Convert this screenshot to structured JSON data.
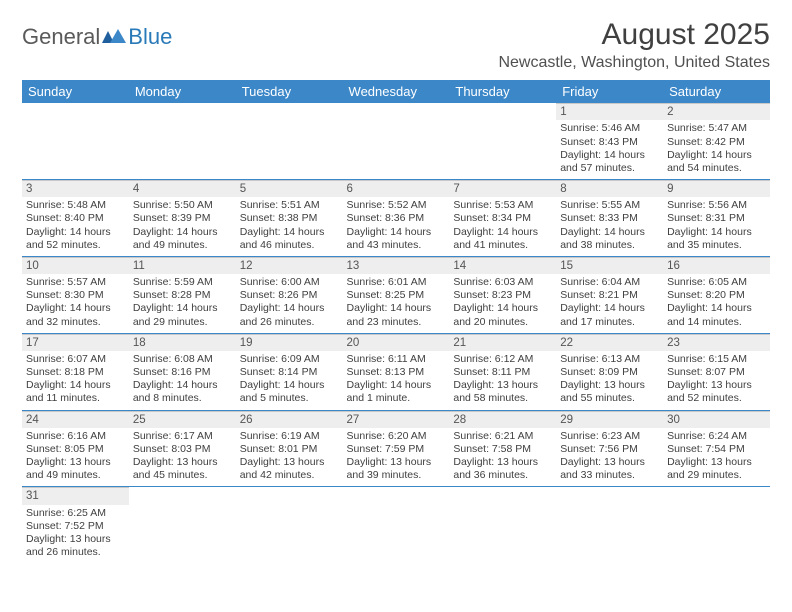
{
  "logo": {
    "text1": "General",
    "text2": "Blue"
  },
  "title": "August 2025",
  "location": "Newcastle, Washington, United States",
  "colors": {
    "header_bg": "#3b87c8",
    "header_text": "#ffffff",
    "daynum_bg": "#eeeeee",
    "row_divider": "#3b87c8",
    "body_text": "#404040"
  },
  "day_headers": [
    "Sunday",
    "Monday",
    "Tuesday",
    "Wednesday",
    "Thursday",
    "Friday",
    "Saturday"
  ],
  "weeks": [
    [
      null,
      null,
      null,
      null,
      null,
      {
        "n": "1",
        "sr": "Sunrise: 5:46 AM",
        "ss": "Sunset: 8:43 PM",
        "d1": "Daylight: 14 hours",
        "d2": "and 57 minutes."
      },
      {
        "n": "2",
        "sr": "Sunrise: 5:47 AM",
        "ss": "Sunset: 8:42 PM",
        "d1": "Daylight: 14 hours",
        "d2": "and 54 minutes."
      }
    ],
    [
      {
        "n": "3",
        "sr": "Sunrise: 5:48 AM",
        "ss": "Sunset: 8:40 PM",
        "d1": "Daylight: 14 hours",
        "d2": "and 52 minutes."
      },
      {
        "n": "4",
        "sr": "Sunrise: 5:50 AM",
        "ss": "Sunset: 8:39 PM",
        "d1": "Daylight: 14 hours",
        "d2": "and 49 minutes."
      },
      {
        "n": "5",
        "sr": "Sunrise: 5:51 AM",
        "ss": "Sunset: 8:38 PM",
        "d1": "Daylight: 14 hours",
        "d2": "and 46 minutes."
      },
      {
        "n": "6",
        "sr": "Sunrise: 5:52 AM",
        "ss": "Sunset: 8:36 PM",
        "d1": "Daylight: 14 hours",
        "d2": "and 43 minutes."
      },
      {
        "n": "7",
        "sr": "Sunrise: 5:53 AM",
        "ss": "Sunset: 8:34 PM",
        "d1": "Daylight: 14 hours",
        "d2": "and 41 minutes."
      },
      {
        "n": "8",
        "sr": "Sunrise: 5:55 AM",
        "ss": "Sunset: 8:33 PM",
        "d1": "Daylight: 14 hours",
        "d2": "and 38 minutes."
      },
      {
        "n": "9",
        "sr": "Sunrise: 5:56 AM",
        "ss": "Sunset: 8:31 PM",
        "d1": "Daylight: 14 hours",
        "d2": "and 35 minutes."
      }
    ],
    [
      {
        "n": "10",
        "sr": "Sunrise: 5:57 AM",
        "ss": "Sunset: 8:30 PM",
        "d1": "Daylight: 14 hours",
        "d2": "and 32 minutes."
      },
      {
        "n": "11",
        "sr": "Sunrise: 5:59 AM",
        "ss": "Sunset: 8:28 PM",
        "d1": "Daylight: 14 hours",
        "d2": "and 29 minutes."
      },
      {
        "n": "12",
        "sr": "Sunrise: 6:00 AM",
        "ss": "Sunset: 8:26 PM",
        "d1": "Daylight: 14 hours",
        "d2": "and 26 minutes."
      },
      {
        "n": "13",
        "sr": "Sunrise: 6:01 AM",
        "ss": "Sunset: 8:25 PM",
        "d1": "Daylight: 14 hours",
        "d2": "and 23 minutes."
      },
      {
        "n": "14",
        "sr": "Sunrise: 6:03 AM",
        "ss": "Sunset: 8:23 PM",
        "d1": "Daylight: 14 hours",
        "d2": "and 20 minutes."
      },
      {
        "n": "15",
        "sr": "Sunrise: 6:04 AM",
        "ss": "Sunset: 8:21 PM",
        "d1": "Daylight: 14 hours",
        "d2": "and 17 minutes."
      },
      {
        "n": "16",
        "sr": "Sunrise: 6:05 AM",
        "ss": "Sunset: 8:20 PM",
        "d1": "Daylight: 14 hours",
        "d2": "and 14 minutes."
      }
    ],
    [
      {
        "n": "17",
        "sr": "Sunrise: 6:07 AM",
        "ss": "Sunset: 8:18 PM",
        "d1": "Daylight: 14 hours",
        "d2": "and 11 minutes."
      },
      {
        "n": "18",
        "sr": "Sunrise: 6:08 AM",
        "ss": "Sunset: 8:16 PM",
        "d1": "Daylight: 14 hours",
        "d2": "and 8 minutes."
      },
      {
        "n": "19",
        "sr": "Sunrise: 6:09 AM",
        "ss": "Sunset: 8:14 PM",
        "d1": "Daylight: 14 hours",
        "d2": "and 5 minutes."
      },
      {
        "n": "20",
        "sr": "Sunrise: 6:11 AM",
        "ss": "Sunset: 8:13 PM",
        "d1": "Daylight: 14 hours",
        "d2": "and 1 minute."
      },
      {
        "n": "21",
        "sr": "Sunrise: 6:12 AM",
        "ss": "Sunset: 8:11 PM",
        "d1": "Daylight: 13 hours",
        "d2": "and 58 minutes."
      },
      {
        "n": "22",
        "sr": "Sunrise: 6:13 AM",
        "ss": "Sunset: 8:09 PM",
        "d1": "Daylight: 13 hours",
        "d2": "and 55 minutes."
      },
      {
        "n": "23",
        "sr": "Sunrise: 6:15 AM",
        "ss": "Sunset: 8:07 PM",
        "d1": "Daylight: 13 hours",
        "d2": "and 52 minutes."
      }
    ],
    [
      {
        "n": "24",
        "sr": "Sunrise: 6:16 AM",
        "ss": "Sunset: 8:05 PM",
        "d1": "Daylight: 13 hours",
        "d2": "and 49 minutes."
      },
      {
        "n": "25",
        "sr": "Sunrise: 6:17 AM",
        "ss": "Sunset: 8:03 PM",
        "d1": "Daylight: 13 hours",
        "d2": "and 45 minutes."
      },
      {
        "n": "26",
        "sr": "Sunrise: 6:19 AM",
        "ss": "Sunset: 8:01 PM",
        "d1": "Daylight: 13 hours",
        "d2": "and 42 minutes."
      },
      {
        "n": "27",
        "sr": "Sunrise: 6:20 AM",
        "ss": "Sunset: 7:59 PM",
        "d1": "Daylight: 13 hours",
        "d2": "and 39 minutes."
      },
      {
        "n": "28",
        "sr": "Sunrise: 6:21 AM",
        "ss": "Sunset: 7:58 PM",
        "d1": "Daylight: 13 hours",
        "d2": "and 36 minutes."
      },
      {
        "n": "29",
        "sr": "Sunrise: 6:23 AM",
        "ss": "Sunset: 7:56 PM",
        "d1": "Daylight: 13 hours",
        "d2": "and 33 minutes."
      },
      {
        "n": "30",
        "sr": "Sunrise: 6:24 AM",
        "ss": "Sunset: 7:54 PM",
        "d1": "Daylight: 13 hours",
        "d2": "and 29 minutes."
      }
    ],
    [
      {
        "n": "31",
        "sr": "Sunrise: 6:25 AM",
        "ss": "Sunset: 7:52 PM",
        "d1": "Daylight: 13 hours",
        "d2": "and 26 minutes."
      },
      null,
      null,
      null,
      null,
      null,
      null
    ]
  ]
}
